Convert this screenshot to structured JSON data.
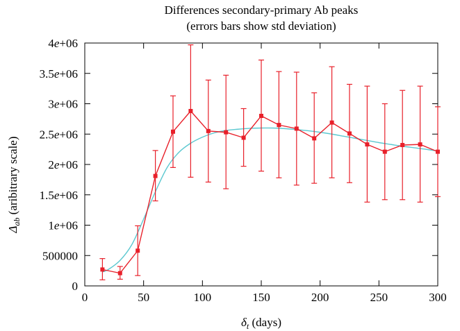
{
  "chart_data": {
    "type": "line",
    "title": "Differences secondary-primary Ab peaks",
    "subtitle": "(errors bars show std deviation)",
    "xlabel": {
      "symbol": "δ",
      "sub": "t",
      "rest": " (days)"
    },
    "ylabel": {
      "symbol": "Δ",
      "sub": "ab",
      "rest": " (aribitrary scale)"
    },
    "xlim": [
      0,
      300
    ],
    "ylim": [
      0,
      4000000
    ],
    "x_ticks": [
      {
        "value": 0,
        "label": "0"
      },
      {
        "value": 50,
        "label": "50"
      },
      {
        "value": 100,
        "label": "100"
      },
      {
        "value": 150,
        "label": "150"
      },
      {
        "value": 200,
        "label": "200"
      },
      {
        "value": 250,
        "label": "250"
      },
      {
        "value": 300,
        "label": "300"
      }
    ],
    "y_ticks": [
      {
        "value": 0,
        "label": "0"
      },
      {
        "value": 500000,
        "label": "500000"
      },
      {
        "value": 1000000,
        "label": "1e+06"
      },
      {
        "value": 1500000,
        "label": "1.5e+06"
      },
      {
        "value": 2000000,
        "label": "2e+06"
      },
      {
        "value": 2500000,
        "label": "2.5e+06"
      },
      {
        "value": 3000000,
        "label": "3e+06"
      },
      {
        "value": 3500000,
        "label": "3.5e+06"
      },
      {
        "value": 4000000,
        "label": "4e+06"
      }
    ],
    "grid": false,
    "series": [
      {
        "kind": "points-with-errorbars",
        "color": "#e8202a",
        "x": [
          15,
          30,
          45,
          60,
          75,
          90,
          105,
          120,
          135,
          150,
          165,
          180,
          195,
          210,
          225,
          240,
          255,
          270,
          285,
          300
        ],
        "y": [
          270000,
          210000,
          580000,
          1810000,
          2540000,
          2880000,
          2550000,
          2530000,
          2440000,
          2800000,
          2650000,
          2590000,
          2430000,
          2690000,
          2510000,
          2330000,
          2210000,
          2320000,
          2330000,
          2210000
        ],
        "err_low": [
          100000,
          110000,
          170000,
          1400000,
          1950000,
          1790000,
          1710000,
          1600000,
          1970000,
          1890000,
          1780000,
          1660000,
          1690000,
          1780000,
          1700000,
          1380000,
          1420000,
          1420000,
          1380000,
          1470000
        ],
        "err_high": [
          450000,
          320000,
          990000,
          2230000,
          3130000,
          3970000,
          3390000,
          3470000,
          2920000,
          3720000,
          3530000,
          3520000,
          3180000,
          3610000,
          3320000,
          3290000,
          3000000,
          3220000,
          3290000,
          2950000
        ]
      },
      {
        "kind": "smooth-fit",
        "color": "#5bc8d0",
        "x": [
          15,
          20,
          30,
          40,
          50,
          60,
          70,
          80,
          90,
          100,
          110,
          120,
          130,
          140,
          150,
          160,
          170,
          180,
          190,
          200,
          210,
          220,
          230,
          240,
          250,
          260,
          270,
          280,
          290,
          300
        ],
        "y": [
          230000,
          270000,
          420000,
          680000,
          1100000,
          1550000,
          1950000,
          2200000,
          2350000,
          2450000,
          2520000,
          2560000,
          2580000,
          2595000,
          2600000,
          2600000,
          2590000,
          2575000,
          2555000,
          2530000,
          2500000,
          2465000,
          2430000,
          2395000,
          2360000,
          2330000,
          2300000,
          2275000,
          2250000,
          2220000
        ]
      }
    ]
  }
}
